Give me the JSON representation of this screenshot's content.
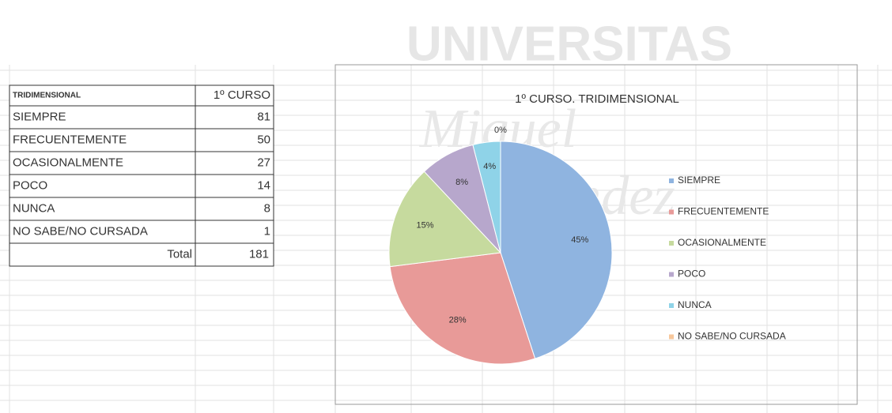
{
  "watermark": [
    "UNIVERSITAS",
    "Miguel",
    "Hernández"
  ],
  "table": {
    "header": [
      "TRIDIMENSIONAL",
      "1º CURSO"
    ],
    "rows": [
      [
        "SIEMPRE",
        81
      ],
      [
        "FRECUENTEMENTE",
        50
      ],
      [
        "OCASIONALMENTE",
        27
      ],
      [
        "POCO",
        14
      ],
      [
        "NUNCA",
        8
      ],
      [
        "NO SABE/NO CURSADA",
        1
      ]
    ],
    "total": [
      "Total",
      181
    ]
  },
  "chart_data": {
    "type": "pie",
    "title": "1º CURSO. TRIDIMENSIONAL",
    "categories": [
      "SIEMPRE",
      "FRECUENTEMENTE",
      "OCASIONALMENTE",
      "POCO",
      "NUNCA",
      "NO SABE/NO CURSADA"
    ],
    "values": [
      45,
      28,
      15,
      8,
      4,
      0
    ],
    "value_labels": [
      "45%",
      "28%",
      "15%",
      "8%",
      "4%",
      "0%"
    ],
    "colors": [
      "#8fb4e0",
      "#e89a98",
      "#c6da9e",
      "#b7a7cc",
      "#8fd3e8",
      "#f7c79b"
    ],
    "legend": "right"
  }
}
